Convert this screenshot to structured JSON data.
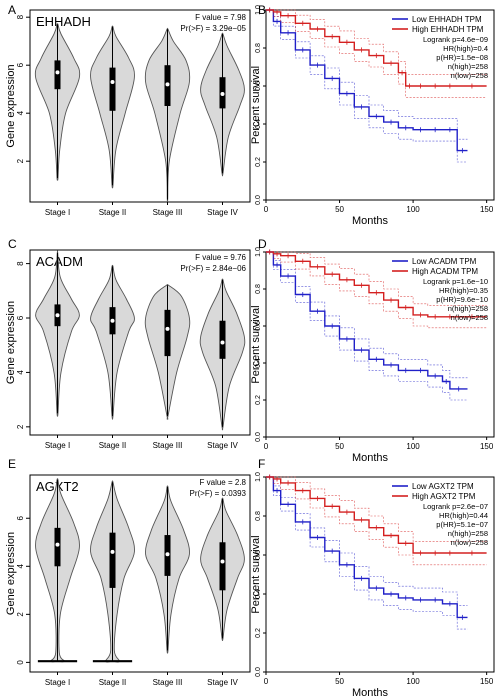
{
  "chart_data": [
    {
      "panel": "A",
      "type": "violin",
      "gene": "EHHADH",
      "f_value": "F value = 7.98",
      "p_value": "Pr(>F) = 3.29e−05",
      "ylabel": "Gene expression",
      "ylim": [
        0.3,
        8.3
      ],
      "yticks": [
        "2",
        "4",
        "6",
        "8"
      ],
      "categories": [
        "Stage I",
        "Stage II",
        "Stage III",
        "Stage IV"
      ],
      "violins": [
        {
          "min": 1.3,
          "max": 7.7,
          "q1": 5.0,
          "median": 5.7,
          "q3": 6.2,
          "wid": [
            [
              1.3,
              0.02
            ],
            [
              2.5,
              0.1
            ],
            [
              4.0,
              0.35
            ],
            [
              5.5,
              0.95
            ],
            [
              6.3,
              0.7
            ],
            [
              7.3,
              0.15
            ],
            [
              7.7,
              0.02
            ]
          ]
        },
        {
          "min": 1.0,
          "max": 7.6,
          "q1": 4.1,
          "median": 5.3,
          "q3": 5.9,
          "wid": [
            [
              1.0,
              0.02
            ],
            [
              2.5,
              0.15
            ],
            [
              4.0,
              0.55
            ],
            [
              5.5,
              0.95
            ],
            [
              6.3,
              0.7
            ],
            [
              7.2,
              0.15
            ],
            [
              7.6,
              0.02
            ]
          ]
        },
        {
          "min": 0.4,
          "max": 7.5,
          "q1": 4.3,
          "median": 5.2,
          "q3": 6.0,
          "wid": [
            [
              0.4,
              0.01
            ],
            [
              2.0,
              0.08
            ],
            [
              4.0,
              0.55
            ],
            [
              5.3,
              0.95
            ],
            [
              6.2,
              0.8
            ],
            [
              7.0,
              0.25
            ],
            [
              7.5,
              0.02
            ]
          ]
        },
        {
          "min": 1.5,
          "max": 7.3,
          "q1": 4.2,
          "median": 4.8,
          "q3": 5.5,
          "wid": [
            [
              1.5,
              0.02
            ],
            [
              3.0,
              0.25
            ],
            [
              4.3,
              0.75
            ],
            [
              5.0,
              0.95
            ],
            [
              5.8,
              0.7
            ],
            [
              6.8,
              0.2
            ],
            [
              7.3,
              0.02
            ]
          ]
        }
      ]
    },
    {
      "panel": "B",
      "type": "line",
      "gene": "EHHADH",
      "legend": [
        "Low EHHADH TPM",
        "High EHHADH TPM"
      ],
      "stats": [
        "Logrank p=4.6e−09",
        "HR(high)=0.4",
        "p(HR)=1.5e−08",
        "n(high)=258",
        "n(low)=258"
      ],
      "xlabel": "Months",
      "ylabel": "Percent survival",
      "xlim": [
        0,
        155
      ],
      "ylim": [
        0,
        1
      ],
      "xticks": [
        "0",
        "50",
        "100",
        "150"
      ],
      "yticks": [
        "0.0",
        "0.2",
        "0.4",
        "0.6",
        "0.8",
        "1.0"
      ],
      "series": [
        {
          "name": "Low EHHADH TPM",
          "color": "#2020c8",
          "x": [
            0,
            5,
            10,
            20,
            30,
            40,
            50,
            60,
            70,
            80,
            90,
            100,
            110,
            120,
            130,
            137
          ],
          "y": [
            1,
            0.94,
            0.88,
            0.79,
            0.71,
            0.64,
            0.56,
            0.49,
            0.44,
            0.41,
            0.38,
            0.37,
            0.37,
            0.37,
            0.26,
            0.26
          ]
        },
        {
          "name": "High EHHADH TPM",
          "color": "#d42020",
          "x": [
            0,
            5,
            10,
            20,
            30,
            40,
            50,
            60,
            70,
            80,
            90,
            95,
            100,
            110,
            120,
            130,
            150
          ],
          "y": [
            1,
            0.99,
            0.97,
            0.93,
            0.9,
            0.86,
            0.83,
            0.79,
            0.76,
            0.72,
            0.67,
            0.6,
            0.6,
            0.6,
            0.6,
            0.6,
            0.6
          ]
        }
      ]
    },
    {
      "panel": "C",
      "type": "violin",
      "gene": "ACADM",
      "f_value": "F value = 9.76",
      "p_value": "Pr(>F) = 2.84e−06",
      "ylabel": "Gene expression",
      "ylim": [
        1.7,
        8.5
      ],
      "yticks": [
        "2",
        "4",
        "6",
        "8"
      ],
      "categories": [
        "Stage I",
        "Stage II",
        "Stage III",
        "Stage IV"
      ],
      "violins": [
        {
          "min": 2.5,
          "max": 8.4,
          "q1": 5.7,
          "median": 6.1,
          "q3": 6.5,
          "wid": [
            [
              2.5,
              0.02
            ],
            [
              4.0,
              0.15
            ],
            [
              5.5,
              0.6
            ],
            [
              6.1,
              0.95
            ],
            [
              6.7,
              0.6
            ],
            [
              7.5,
              0.12
            ],
            [
              8.4,
              0.01
            ]
          ]
        },
        {
          "min": 2.4,
          "max": 7.9,
          "q1": 5.4,
          "median": 5.9,
          "q3": 6.4,
          "wid": [
            [
              2.4,
              0.02
            ],
            [
              4.0,
              0.2
            ],
            [
              5.5,
              0.7
            ],
            [
              6.0,
              0.95
            ],
            [
              6.7,
              0.6
            ],
            [
              7.4,
              0.15
            ],
            [
              7.9,
              0.02
            ]
          ]
        },
        {
          "min": 2.4,
          "max": 7.2,
          "q1": 4.6,
          "median": 5.6,
          "q3": 6.3,
          "wid": [
            [
              2.4,
              0.02
            ],
            [
              4.0,
              0.4
            ],
            [
              5.3,
              0.85
            ],
            [
              6.0,
              0.95
            ],
            [
              6.8,
              0.6
            ],
            [
              7.2,
              0.05
            ]
          ]
        },
        {
          "min": 2.0,
          "max": 7.4,
          "q1": 4.5,
          "median": 5.1,
          "q3": 5.9,
          "wid": [
            [
              2.0,
              0.02
            ],
            [
              3.5,
              0.3
            ],
            [
              4.7,
              0.85
            ],
            [
              5.3,
              0.95
            ],
            [
              6.2,
              0.6
            ],
            [
              7.0,
              0.15
            ],
            [
              7.4,
              0.02
            ]
          ]
        }
      ]
    },
    {
      "panel": "D",
      "type": "line",
      "gene": "ACADM",
      "legend": [
        "Low ACADM TPM",
        "High ACADM TPM"
      ],
      "stats": [
        "Logrank p=1.6e−10",
        "HR(high)=0.35",
        "p(HR)=9.6e−10",
        "n(high)=258",
        "n(low)=258"
      ],
      "xlabel": "Months",
      "ylabel": "Percent survival",
      "xlim": [
        0,
        155
      ],
      "ylim": [
        0,
        1
      ],
      "xticks": [
        "0",
        "50",
        "100",
        "150"
      ],
      "yticks": [
        "0.0",
        "0.2",
        "0.4",
        "0.6",
        "0.8",
        "1.0"
      ],
      "series": [
        {
          "name": "Low ACADM TPM",
          "color": "#2020c8",
          "x": [
            0,
            5,
            10,
            20,
            30,
            40,
            50,
            60,
            70,
            80,
            90,
            100,
            110,
            120,
            125,
            137
          ],
          "y": [
            1,
            0.93,
            0.87,
            0.77,
            0.68,
            0.6,
            0.53,
            0.47,
            0.42,
            0.39,
            0.36,
            0.36,
            0.33,
            0.3,
            0.26,
            0.26
          ]
        },
        {
          "name": "High ACADM TPM",
          "color": "#d42020",
          "x": [
            0,
            5,
            10,
            20,
            30,
            40,
            50,
            60,
            70,
            80,
            90,
            100,
            110,
            120,
            130,
            150
          ],
          "y": [
            1,
            0.99,
            0.98,
            0.95,
            0.92,
            0.88,
            0.85,
            0.82,
            0.78,
            0.74,
            0.7,
            0.66,
            0.65,
            0.65,
            0.65,
            0.65
          ]
        }
      ]
    },
    {
      "panel": "E",
      "type": "violin",
      "gene": "AGXT2",
      "f_value": "F value = 2.8",
      "p_value": "Pr(>F) = 0.0393",
      "ylabel": "Gene expression",
      "ylim": [
        -0.4,
        7.8
      ],
      "yticks": [
        "0",
        "2",
        "4",
        "6"
      ],
      "categories": [
        "Stage I",
        "Stage II",
        "Stage III",
        "Stage IV"
      ],
      "floor_lines": [
        0,
        1
      ],
      "violins": [
        {
          "min": 0.05,
          "max": 7.6,
          "q1": 4.0,
          "median": 4.9,
          "q3": 5.6,
          "wid": [
            [
              0.05,
              0.3
            ],
            [
              0.4,
              0.08
            ],
            [
              2.0,
              0.12
            ],
            [
              3.5,
              0.55
            ],
            [
              4.8,
              0.95
            ],
            [
              5.8,
              0.7
            ],
            [
              7.0,
              0.15
            ],
            [
              7.6,
              0.02
            ]
          ]
        },
        {
          "min": 0.05,
          "max": 7.5,
          "q1": 3.1,
          "median": 4.6,
          "q3": 5.4,
          "wid": [
            [
              0.05,
              0.3
            ],
            [
              0.5,
              0.08
            ],
            [
              2.0,
              0.2
            ],
            [
              3.5,
              0.5
            ],
            [
              4.6,
              0.95
            ],
            [
              5.6,
              0.7
            ],
            [
              6.8,
              0.2
            ],
            [
              7.5,
              0.02
            ]
          ]
        },
        {
          "min": 0.5,
          "max": 7.3,
          "q1": 3.6,
          "median": 4.5,
          "q3": 5.3,
          "wid": [
            [
              0.5,
              0.02
            ],
            [
              2.0,
              0.15
            ],
            [
              3.5,
              0.5
            ],
            [
              4.5,
              0.95
            ],
            [
              5.5,
              0.7
            ],
            [
              6.7,
              0.15
            ],
            [
              7.3,
              0.02
            ]
          ]
        },
        {
          "min": 1.0,
          "max": 6.8,
          "q1": 3.0,
          "median": 4.2,
          "q3": 5.0,
          "wid": [
            [
              1.0,
              0.02
            ],
            [
              2.2,
              0.2
            ],
            [
              3.5,
              0.65
            ],
            [
              4.3,
              0.95
            ],
            [
              5.3,
              0.65
            ],
            [
              6.3,
              0.15
            ],
            [
              6.8,
              0.02
            ]
          ]
        }
      ]
    },
    {
      "panel": "F",
      "type": "line",
      "gene": "AGXT2",
      "legend": [
        "Low AGXT2 TPM",
        "High AGXT2 TPM"
      ],
      "stats": [
        "Logrank p=2.6e−07",
        "HR(high)=0.44",
        "p(HR)=5.1e−07",
        "n(high)=258",
        "n(low)=258"
      ],
      "xlabel": "Months",
      "ylabel": "Percent survival",
      "xlim": [
        0,
        155
      ],
      "ylim": [
        0,
        1
      ],
      "xticks": [
        "0",
        "50",
        "100",
        "150"
      ],
      "yticks": [
        "0.0",
        "0.2",
        "0.4",
        "0.6",
        "0.8",
        "1.0"
      ],
      "series": [
        {
          "name": "Low AGXT2 TPM",
          "color": "#2020c8",
          "x": [
            0,
            5,
            10,
            20,
            30,
            40,
            50,
            60,
            70,
            80,
            90,
            100,
            110,
            120,
            130,
            137
          ],
          "y": [
            1,
            0.93,
            0.86,
            0.77,
            0.69,
            0.62,
            0.55,
            0.48,
            0.43,
            0.4,
            0.38,
            0.37,
            0.37,
            0.35,
            0.28,
            0.28
          ]
        },
        {
          "name": "High AGXT2 TPM",
          "color": "#d42020",
          "x": [
            0,
            5,
            10,
            20,
            30,
            40,
            50,
            60,
            70,
            80,
            90,
            100,
            110,
            120,
            130,
            150
          ],
          "y": [
            1,
            0.99,
            0.97,
            0.93,
            0.89,
            0.85,
            0.82,
            0.78,
            0.74,
            0.7,
            0.66,
            0.61,
            0.61,
            0.61,
            0.61,
            0.61
          ]
        }
      ]
    }
  ]
}
